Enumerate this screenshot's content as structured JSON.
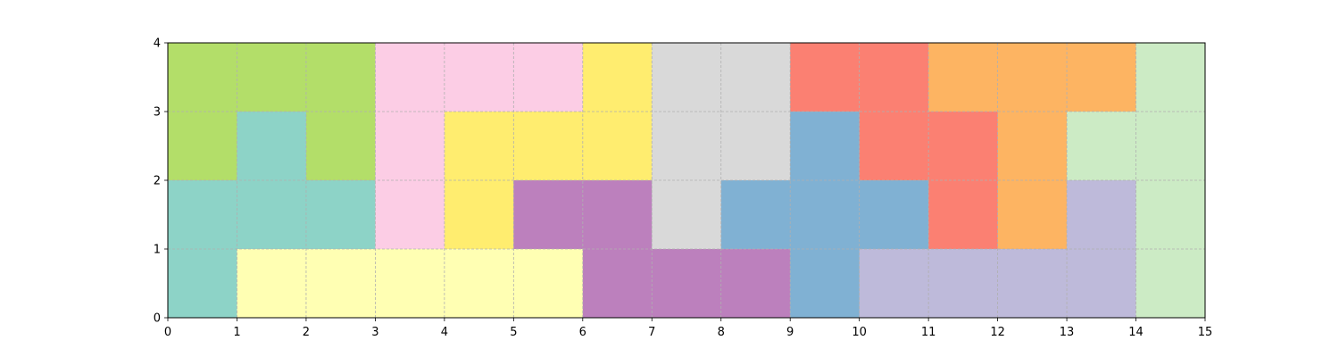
{
  "chart_data": {
    "type": "heatmap",
    "title": "",
    "xlabel": "",
    "ylabel": "",
    "xlim": [
      0,
      15
    ],
    "ylim": [
      0,
      4
    ],
    "xticks": [
      "0",
      "1",
      "2",
      "3",
      "4",
      "5",
      "6",
      "7",
      "8",
      "9",
      "10",
      "11",
      "12",
      "13",
      "14",
      "15"
    ],
    "yticks": [
      "0",
      "1",
      "2",
      "3",
      "4"
    ],
    "grid": true,
    "legend": "none",
    "colors": {
      "green_dark": "#b3de69",
      "teal": "#8dd3c7",
      "pink": "#fccde5",
      "yellow": "#ffed6f",
      "light_yellow": "#ffffb3",
      "purple": "#bc80bd",
      "grey": "#d9d9d9",
      "blue": "#80b1d3",
      "salmon": "#fb8072",
      "orange": "#fdb462",
      "light_green": "#ccebc5",
      "lavender": "#bebada"
    },
    "grid_rows_top_to_bottom": [
      [
        "green_dark",
        "green_dark",
        "green_dark",
        "pink",
        "pink",
        "pink",
        "yellow",
        "grey",
        "grey",
        "salmon",
        "salmon",
        "orange",
        "orange",
        "orange",
        "light_green"
      ],
      [
        "green_dark",
        "teal",
        "green_dark",
        "pink",
        "yellow",
        "yellow",
        "yellow",
        "grey",
        "grey",
        "blue",
        "salmon",
        "salmon",
        "orange",
        "light_green",
        "light_green"
      ],
      [
        "teal",
        "teal",
        "teal",
        "pink",
        "yellow",
        "purple",
        "purple",
        "grey",
        "blue",
        "blue",
        "blue",
        "salmon",
        "orange",
        "lavender",
        "light_green"
      ],
      [
        "teal",
        "light_yellow",
        "light_yellow",
        "light_yellow",
        "light_yellow",
        "light_yellow",
        "purple",
        "purple",
        "purple",
        "blue",
        "lavender",
        "lavender",
        "lavender",
        "lavender",
        "light_green"
      ]
    ]
  }
}
